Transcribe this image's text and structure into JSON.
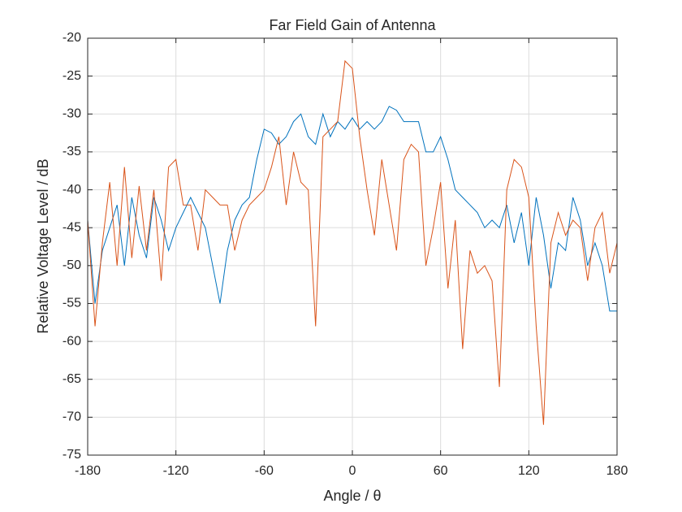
{
  "chart_data": {
    "type": "line",
    "title": "Far Field Gain of Antenna",
    "x_label": "Angle / θ",
    "y_label": "Relative Voltage Level / dB",
    "x": [
      -180,
      -175,
      -170,
      -165,
      -160,
      -155,
      -150,
      -145,
      -140,
      -135,
      -130,
      -125,
      -120,
      -115,
      -110,
      -105,
      -100,
      -95,
      -90,
      -85,
      -80,
      -75,
      -70,
      -65,
      -60,
      -55,
      -50,
      -45,
      -40,
      -35,
      -30,
      -25,
      -20,
      -15,
      -10,
      -5,
      0,
      5,
      10,
      15,
      20,
      25,
      30,
      35,
      40,
      45,
      50,
      55,
      60,
      65,
      70,
      75,
      80,
      85,
      90,
      95,
      100,
      105,
      110,
      115,
      120,
      125,
      130,
      135,
      140,
      145,
      150,
      155,
      160,
      165,
      170,
      175,
      180
    ],
    "series": [
      {
        "color": "#0072BD",
        "values": [
          -44,
          -55,
          -48,
          -45,
          -42,
          -50,
          -41,
          -46,
          -49,
          -41,
          -44,
          -48,
          -45,
          -43,
          -41,
          -43,
          -45,
          -50,
          -55,
          -48,
          -44,
          -42,
          -41,
          -36,
          -32,
          -32.5,
          -34,
          -33,
          -31,
          -30,
          -33,
          -34,
          -30,
          -33,
          -31,
          -32,
          -30.5,
          -32,
          -31,
          -32,
          -31,
          -29,
          -29.5,
          -31,
          -31,
          -31,
          -35,
          -35,
          -33,
          -36,
          -40,
          -41,
          -42,
          -43,
          -45,
          -44,
          -45,
          -42,
          -47,
          -43,
          -50,
          -41,
          -46,
          -53,
          -47,
          -48,
          -41,
          -44,
          -50,
          -47,
          -50,
          -56,
          -56
        ]
      },
      {
        "color": "#D95319",
        "values": [
          -44,
          -58,
          -47,
          -39,
          -50,
          -37,
          -49,
          -39.5,
          -48,
          -40,
          -52,
          -37,
          -36,
          -42,
          -42,
          -48,
          -40,
          -41,
          -42,
          -42,
          -48,
          -44,
          -42,
          -41,
          -40,
          -37,
          -33,
          -42,
          -35,
          -39,
          -40,
          -58,
          -33,
          -32,
          -31,
          -23,
          -24,
          -33,
          -40,
          -46,
          -36,
          -42,
          -48,
          -36,
          -34,
          -35,
          -50,
          -45,
          -39,
          -53,
          -44,
          -61,
          -48,
          -51,
          -50,
          -52,
          -66,
          -40,
          -36,
          -37,
          -41,
          -58,
          -71,
          -47,
          -43,
          -46,
          -44,
          -45,
          -52,
          -45,
          -43,
          -51,
          -47
        ]
      }
    ],
    "xlim": [
      -180,
      180
    ],
    "xticks": [
      -180,
      -120,
      -60,
      0,
      60,
      120,
      180
    ],
    "ylim": [
      -75,
      -20
    ],
    "yticks": [
      -75,
      -70,
      -65,
      -60,
      -55,
      -50,
      -45,
      -40,
      -35,
      -30,
      -25,
      -20
    ],
    "grid": true
  }
}
